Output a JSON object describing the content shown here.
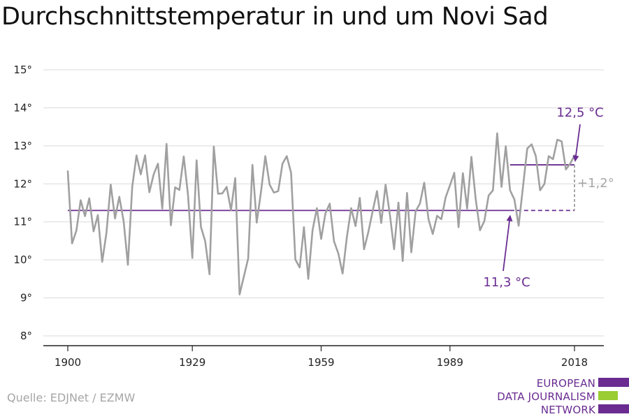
{
  "title": "Durchschnittstemperatur in und um Novi Sad",
  "source": "Quelle: EDJNet / EZMW",
  "logo": {
    "lines": [
      "EUROPEAN",
      "DATA JOURNALISM",
      "NETWORK"
    ],
    "colors": [
      "#6a2c91",
      "#9acd32",
      "#6a2c91"
    ]
  },
  "colors": {
    "series": "#a0a0a0",
    "accent": "#6a2c91",
    "grid": "#d9d9d9",
    "axis": "#222222",
    "annotation_gray": "#a6a6a6"
  },
  "chart_data": {
    "type": "line",
    "title": "Durchschnittstemperatur in und um Novi Sad",
    "xlabel": "",
    "ylabel": "",
    "xlim": [
      1900,
      2018
    ],
    "ylim": [
      8,
      15
    ],
    "x_ticks": [
      1900,
      1929,
      1959,
      1989,
      2018
    ],
    "y_ticks": [
      {
        "value": 8,
        "label": "8°"
      },
      {
        "value": 9,
        "label": "9°"
      },
      {
        "value": 10,
        "label": "10°"
      },
      {
        "value": 11,
        "label": "11°"
      },
      {
        "value": 12,
        "label": "12°"
      },
      {
        "value": 13,
        "label": "13°"
      },
      {
        "value": 14,
        "label": "14°"
      },
      {
        "value": 15,
        "label": "15°"
      }
    ],
    "grid": true,
    "series": [
      {
        "x": [
          1900,
          1901,
          1902,
          1903,
          1904,
          1905,
          1906,
          1907,
          1908,
          1909,
          1910,
          1911,
          1912,
          1913,
          1914,
          1915,
          1916,
          1917,
          1918,
          1919,
          1920,
          1921,
          1922,
          1923,
          1924,
          1925,
          1926,
          1927,
          1928,
          1929,
          1930,
          1931,
          1932,
          1933,
          1934,
          1935,
          1936,
          1937,
          1938,
          1939,
          1940,
          1941,
          1942,
          1943,
          1944,
          1945,
          1946,
          1947,
          1948,
          1949,
          1950,
          1951,
          1952,
          1953,
          1954,
          1955,
          1956,
          1957,
          1958,
          1959,
          1960,
          1961,
          1962,
          1963,
          1964,
          1965,
          1966,
          1967,
          1968,
          1969,
          1970,
          1971,
          1972,
          1973,
          1974,
          1975,
          1976,
          1977,
          1978,
          1979,
          1980,
          1981,
          1982,
          1983,
          1984,
          1985,
          1986,
          1987,
          1988,
          1989,
          1990,
          1991,
          1992,
          1993,
          1994,
          1995,
          1996,
          1997,
          1998,
          1999,
          2000,
          2001,
          2002,
          2003,
          2004,
          2005,
          2006,
          2007,
          2008,
          2009,
          2010,
          2011,
          2012,
          2013,
          2014,
          2015,
          2016,
          2017,
          2018
        ],
        "values": [
          12.33,
          10.43,
          10.77,
          11.57,
          11.15,
          11.62,
          10.75,
          11.18,
          9.95,
          10.71,
          11.98,
          11.09,
          11.66,
          11.02,
          9.87,
          11.92,
          12.75,
          12.25,
          12.75,
          11.78,
          12.25,
          12.53,
          11.35,
          13.05,
          10.91,
          11.91,
          11.84,
          12.72,
          11.71,
          10.05,
          12.62,
          10.87,
          10.49,
          9.62,
          12.98,
          11.74,
          11.75,
          11.92,
          11.31,
          12.15,
          9.09,
          9.56,
          10.04,
          12.5,
          10.98,
          11.8,
          12.73,
          11.98,
          11.77,
          11.81,
          12.53,
          12.73,
          12.29,
          10.01,
          9.8,
          10.86,
          9.5,
          10.78,
          11.36,
          10.55,
          11.22,
          11.48,
          10.49,
          10.17,
          9.64,
          10.61,
          11.36,
          10.89,
          11.63,
          10.28,
          10.74,
          11.28,
          11.81,
          10.97,
          11.98,
          11.2,
          10.28,
          11.51,
          9.97,
          11.76,
          10.2,
          11.28,
          11.48,
          12.03,
          11.07,
          10.68,
          11.16,
          11.07,
          11.65,
          11.96,
          12.29,
          10.86,
          12.28,
          11.35,
          12.71,
          11.59,
          10.78,
          11.02,
          11.69,
          11.83,
          13.33,
          11.92,
          12.99,
          11.83,
          11.59,
          10.9,
          11.92,
          12.93,
          13.04,
          12.73,
          11.83,
          12.0,
          12.73,
          12.65,
          13.16,
          13.12,
          12.38,
          12.53,
          12.75
        ]
      }
    ],
    "reference_lines": [
      {
        "value": 11.3,
        "x_start": 1900,
        "x_end": 2018,
        "style": "solid until 2003, dashed after"
      },
      {
        "value": 12.5,
        "x_start": 2003,
        "x_end": 2018,
        "style": "solid"
      }
    ],
    "annotations": [
      {
        "text": "12,5 °C",
        "points_to": {
          "x": 2018,
          "y": 12.5
        },
        "placement": "above"
      },
      {
        "text": "11,3 °C",
        "points_to": {
          "x": 2003,
          "y": 11.3
        },
        "placement": "below"
      },
      {
        "text": "+1,2°",
        "placement": "right of 2018, between reference lines"
      }
    ]
  }
}
